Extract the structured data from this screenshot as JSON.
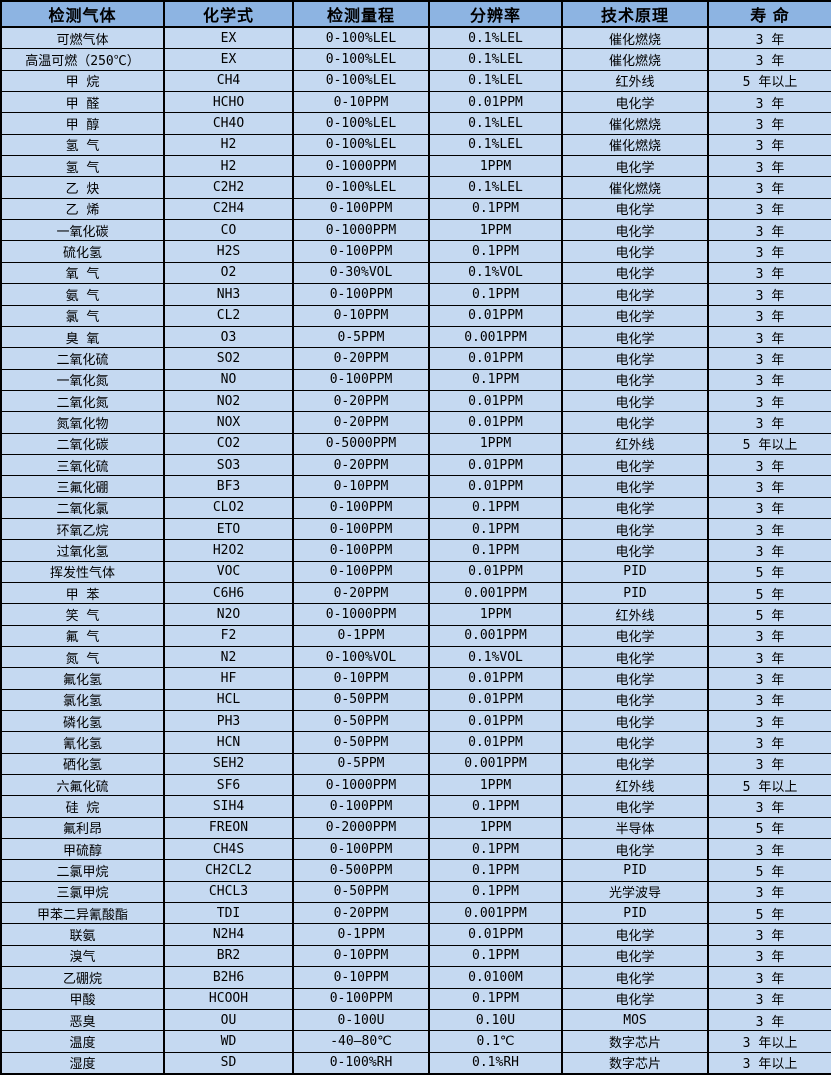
{
  "table": {
    "title": "gas-sensor-specification-table",
    "colors": {
      "header_bg": "#8DB4E2",
      "row_bg": "#C5D9F1",
      "border": "#000000",
      "text": "#000000"
    },
    "columns": [
      "检测气体",
      "化学式",
      "检测量程",
      "分辨率",
      "技术原理",
      "寿 命"
    ],
    "rows": [
      [
        "可燃气体",
        "EX",
        "0-100%LEL",
        "0.1%LEL",
        "催化燃烧",
        "3 年"
      ],
      [
        "高温可燃（250℃）",
        "EX",
        "0-100%LEL",
        "0.1%LEL",
        "催化燃烧",
        "3 年"
      ],
      [
        "甲 烷",
        "CH4",
        "0-100%LEL",
        "0.1%LEL",
        "红外线",
        "5 年以上"
      ],
      [
        "甲 醛",
        "HCHO",
        "0-10PPM",
        "0.01PPM",
        "电化学",
        "3 年"
      ],
      [
        "甲 醇",
        "CH4O",
        "0-100%LEL",
        "0.1%LEL",
        "催化燃烧",
        "3 年"
      ],
      [
        "氢 气",
        "H2",
        "0-100%LEL",
        "0.1%LEL",
        "催化燃烧",
        "3 年"
      ],
      [
        "氢 气",
        "H2",
        "0-1000PPM",
        "1PPM",
        "电化学",
        "3 年"
      ],
      [
        "乙 炔",
        "C2H2",
        "0-100%LEL",
        "0.1%LEL",
        "催化燃烧",
        "3 年"
      ],
      [
        "乙 烯",
        "C2H4",
        "0-100PPM",
        "0.1PPM",
        "电化学",
        "3 年"
      ],
      [
        "一氧化碳",
        "CO",
        "0-1000PPM",
        "1PPM",
        "电化学",
        "3 年"
      ],
      [
        "硫化氢",
        "H2S",
        "0-100PPM",
        "0.1PPM",
        "电化学",
        "3 年"
      ],
      [
        "氧 气",
        "O2",
        "0-30%VOL",
        "0.1%VOL",
        "电化学",
        "3 年"
      ],
      [
        "氨 气",
        "NH3",
        "0-100PPM",
        "0.1PPM",
        "电化学",
        "3 年"
      ],
      [
        "氯 气",
        "CL2",
        "0-10PPM",
        "0.01PPM",
        "电化学",
        "3 年"
      ],
      [
        "臭 氧",
        "O3",
        "0-5PPM",
        "0.001PPM",
        "电化学",
        "3 年"
      ],
      [
        "二氧化硫",
        "SO2",
        "0-20PPM",
        "0.01PPM",
        "电化学",
        "3 年"
      ],
      [
        "一氧化氮",
        "NO",
        "0-100PPM",
        "0.1PPM",
        "电化学",
        "3 年"
      ],
      [
        "二氧化氮",
        "NO2",
        "0-20PPM",
        "0.01PPM",
        "电化学",
        "3 年"
      ],
      [
        "氮氧化物",
        "NOX",
        "0-20PPM",
        "0.01PPM",
        "电化学",
        "3 年"
      ],
      [
        "二氧化碳",
        "CO2",
        "0-5000PPM",
        "1PPM",
        "红外线",
        "5 年以上"
      ],
      [
        "三氧化硫",
        "SO3",
        "0-20PPM",
        "0.01PPM",
        "电化学",
        "3 年"
      ],
      [
        "三氟化硼",
        "BF3",
        "0-10PPM",
        "0.01PPM",
        "电化学",
        "3 年"
      ],
      [
        "二氧化氯",
        "CLO2",
        "0-100PPM",
        "0.1PPM",
        "电化学",
        "3 年"
      ],
      [
        "环氧乙烷",
        "ETO",
        "0-100PPM",
        "0.1PPM",
        "电化学",
        "3 年"
      ],
      [
        "过氧化氢",
        "H2O2",
        "0-100PPM",
        "0.1PPM",
        "电化学",
        "3 年"
      ],
      [
        "挥发性气体",
        "VOC",
        "0-100PPM",
        "0.01PPM",
        "PID",
        "5 年"
      ],
      [
        "甲 苯",
        "C6H6",
        "0-20PPM",
        "0.001PPM",
        "PID",
        "5 年"
      ],
      [
        "笑 气",
        "N2O",
        "0-1000PPM",
        "1PPM",
        "红外线",
        "5 年"
      ],
      [
        "氟 气",
        "F2",
        "0-1PPM",
        "0.001PPM",
        "电化学",
        "3 年"
      ],
      [
        "氮 气",
        "N2",
        "0-100%VOL",
        "0.1%VOL",
        "电化学",
        "3 年"
      ],
      [
        "氟化氢",
        "HF",
        "0-10PPM",
        "0.01PPM",
        "电化学",
        "3 年"
      ],
      [
        "氯化氢",
        "HCL",
        "0-50PPM",
        "0.01PPM",
        "电化学",
        "3 年"
      ],
      [
        "磷化氢",
        "PH3",
        "0-50PPM",
        "0.01PPM",
        "电化学",
        "3 年"
      ],
      [
        "氰化氢",
        "HCN",
        "0-50PPM",
        "0.01PPM",
        "电化学",
        "3 年"
      ],
      [
        "硒化氢",
        "SEH2",
        "0-5PPM",
        "0.001PPM",
        "电化学",
        "3 年"
      ],
      [
        "六氟化硫",
        "SF6",
        "0-1000PPM",
        "1PPM",
        "红外线",
        "5 年以上"
      ],
      [
        "硅 烷",
        "SIH4",
        "0-100PPM",
        "0.1PPM",
        "电化学",
        "3 年"
      ],
      [
        "氟利昂",
        "FREON",
        "0-2000PPM",
        "1PPM",
        "半导体",
        "5 年"
      ],
      [
        "甲硫醇",
        "CH4S",
        "0-100PPM",
        "0.1PPM",
        "电化学",
        "3 年"
      ],
      [
        "二氯甲烷",
        "CH2CL2",
        "0-500PPM",
        "0.1PPM",
        "PID",
        "5 年"
      ],
      [
        "三氯甲烷",
        "CHCL3",
        "0-50PPM",
        "0.1PPM",
        "光学波导",
        "3 年"
      ],
      [
        "甲苯二异氰酸酯",
        "TDI",
        "0-20PPM",
        "0.001PPM",
        "PID",
        "5 年"
      ],
      [
        "联氨",
        "N2H4",
        "0-1PPM",
        "0.01PPM",
        "电化学",
        "3 年"
      ],
      [
        "溴气",
        "BR2",
        "0-10PPM",
        "0.1PPM",
        "电化学",
        "3 年"
      ],
      [
        "乙硼烷",
        "B2H6",
        "0-10PPM",
        "0.0100M",
        "电化学",
        "3 年"
      ],
      [
        "甲酸",
        "HCOOH",
        "0-100PPM",
        "0.1PPM",
        "电化学",
        "3 年"
      ],
      [
        "恶臭",
        "OU",
        "0-100U",
        "0.10U",
        "MOS",
        "3 年"
      ],
      [
        "温度",
        "WD",
        "-40—80℃",
        "0.1℃",
        "数字芯片",
        "3 年以上"
      ],
      [
        "湿度",
        "SD",
        "0-100%RH",
        "0.1%RH",
        "数字芯片",
        "3 年以上"
      ]
    ]
  }
}
